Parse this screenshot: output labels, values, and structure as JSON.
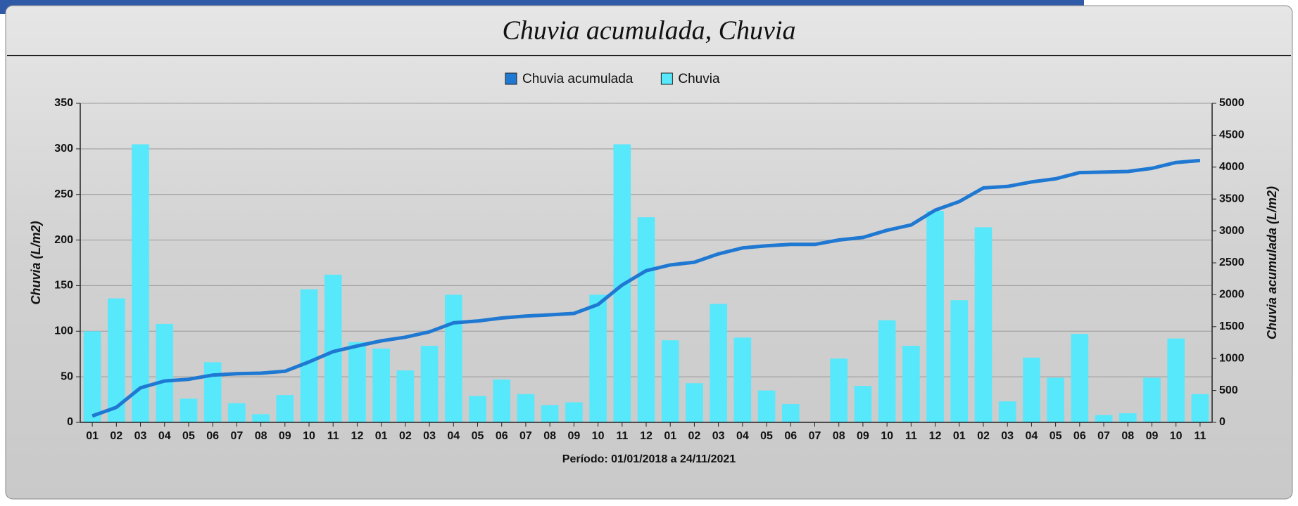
{
  "chart_data": {
    "type": "bar",
    "title": "Chuvia acumulada, Chuvia",
    "xlabel": "Período: 01/01/2018 a 24/11/2021",
    "ylabel": "Chuvia (L/m2)",
    "y2label": "Chuvia acumulada (L/m2)",
    "categories": [
      "01",
      "02",
      "03",
      "04",
      "05",
      "06",
      "07",
      "08",
      "09",
      "10",
      "11",
      "12",
      "01",
      "02",
      "03",
      "04",
      "05",
      "06",
      "07",
      "08",
      "09",
      "10",
      "11",
      "12",
      "01",
      "02",
      "03",
      "04",
      "05",
      "06",
      "07",
      "08",
      "09",
      "10",
      "11",
      "12",
      "01",
      "02",
      "03",
      "04",
      "05",
      "06",
      "07",
      "08",
      "09",
      "10",
      "11"
    ],
    "series": [
      {
        "name": "Chuvia acumulada",
        "type": "line",
        "axis": "y2",
        "color": "#1f78d1",
        "values": [
          100,
          236,
          541,
          649,
          675,
          741,
          762,
          771,
          801,
          947,
          1109,
          1197,
          1278,
          1335,
          1419,
          1559,
          1588,
          1635,
          1666,
          1685,
          1707,
          1847,
          2152,
          2377,
          2467,
          2510,
          2640,
          2733,
          2768,
          2788,
          2788,
          2858,
          2898,
          3010,
          3094,
          3326,
          3460,
          3674,
          3697,
          3768,
          3817,
          3914,
          3922,
          3932,
          3981,
          4073,
          4104
        ]
      },
      {
        "name": "Chuvia",
        "type": "bar",
        "color": "#58e8fb",
        "values": [
          100,
          136,
          305,
          108,
          26,
          66,
          21,
          9,
          30,
          146,
          162,
          88,
          81,
          57,
          84,
          140,
          29,
          47,
          31,
          19,
          22,
          140,
          305,
          225,
          90,
          43,
          130,
          93,
          35,
          20,
          0,
          70,
          40,
          112,
          84,
          232,
          134,
          214,
          23,
          71,
          49,
          97,
          8,
          10,
          49,
          92,
          31
        ]
      }
    ],
    "ylim": [
      0,
      350
    ],
    "yticks": [
      0,
      50,
      100,
      150,
      200,
      250,
      300,
      350
    ],
    "y2lim": [
      0,
      5000
    ],
    "y2ticks": [
      0,
      500,
      1000,
      1500,
      2000,
      2500,
      3000,
      3500,
      4000,
      4500,
      5000
    ],
    "grid": true,
    "legend": "top"
  }
}
